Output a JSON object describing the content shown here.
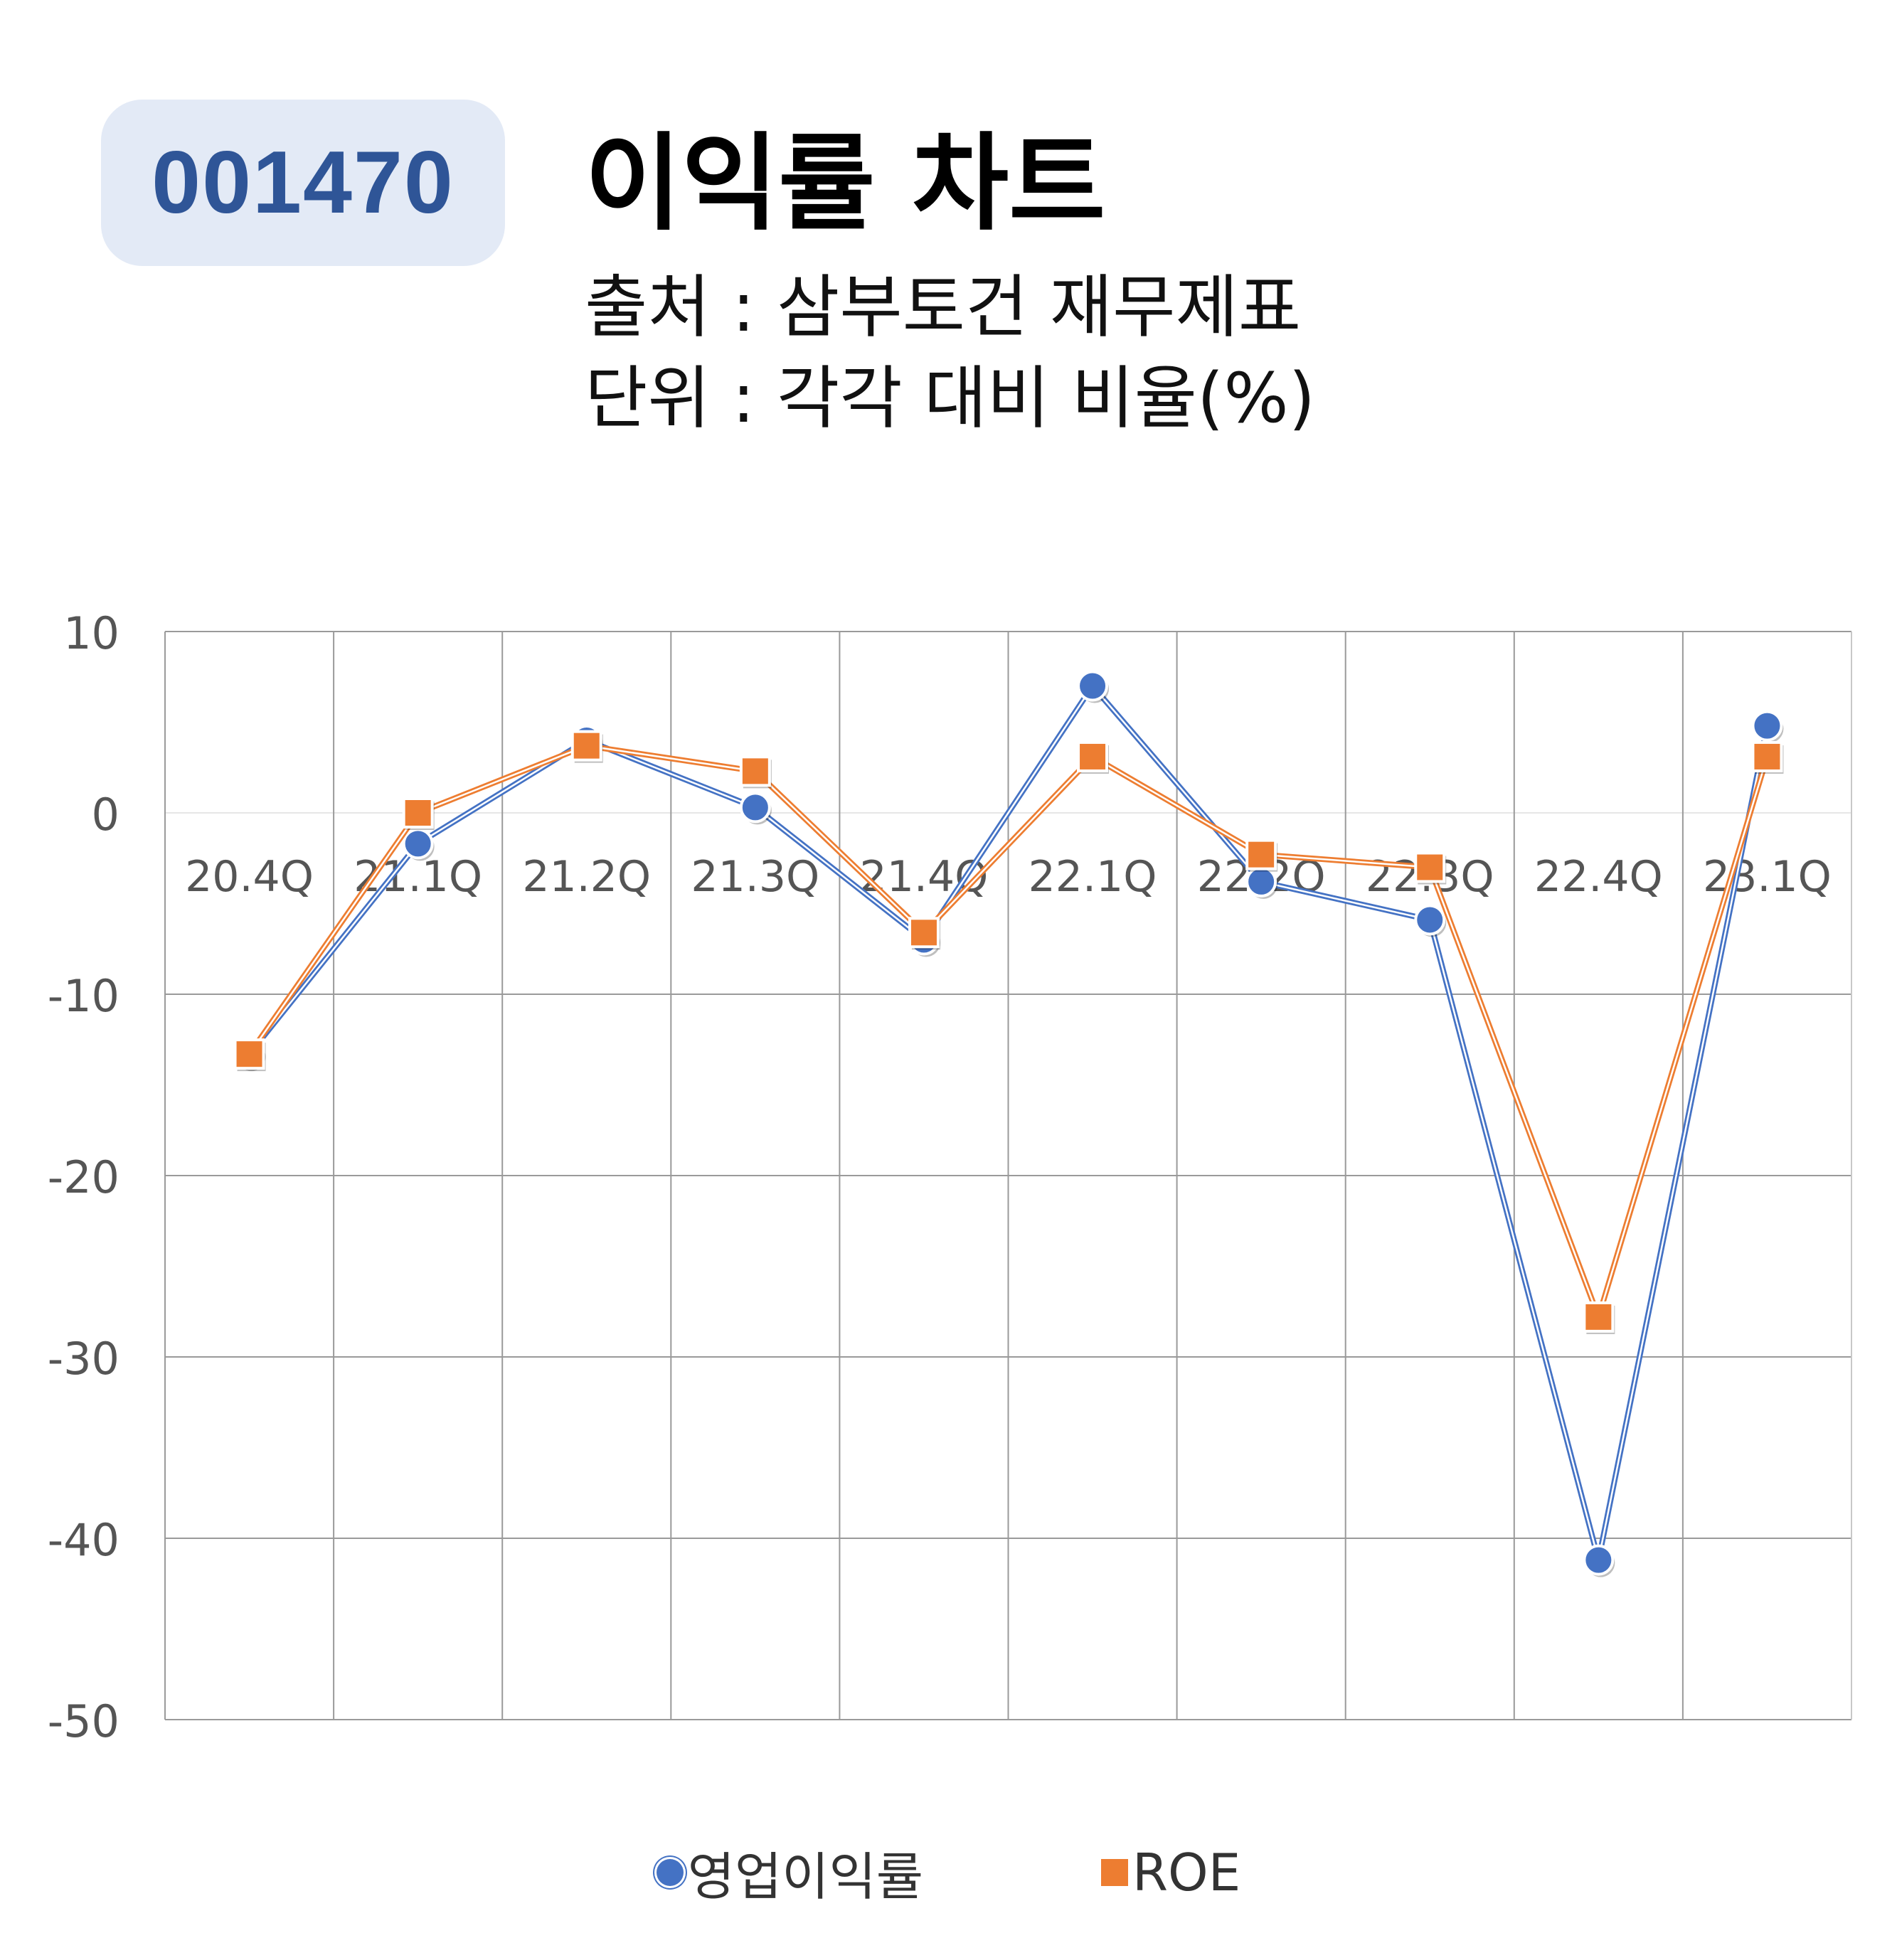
{
  "header": {
    "code": "001470",
    "title": "이익률 차트",
    "source": "출처 : 삼부토건 재무제표",
    "unit": "단위 : 각각 대비 비율(%)"
  },
  "colors": {
    "operating_margin": "#4472c4",
    "roe": "#ed7d31",
    "badge_bg": "#e3eaf6",
    "badge_text": "#2f5597"
  },
  "chart_data": {
    "type": "line",
    "title": "",
    "xlabel": "",
    "ylabel": "",
    "categories": [
      "20.4Q",
      "21.1Q",
      "21.2Q",
      "21.3Q",
      "21.4Q",
      "22.1Q",
      "22.2Q",
      "22.3Q",
      "22.4Q",
      "23.1Q"
    ],
    "ylim": [
      -50,
      10
    ],
    "yticks": [
      10,
      0,
      -10,
      -20,
      -30,
      -40,
      -50
    ],
    "grid": true,
    "legend": "bottom",
    "series": [
      {
        "name": "영업이익률",
        "marker": "circle",
        "values": [
          -13.3,
          -1.7,
          4.0,
          0.3,
          -7.0,
          7.0,
          -3.8,
          -5.9,
          -41.2,
          4.8
        ]
      },
      {
        "name": "ROE",
        "marker": "square",
        "values": [
          -13.3,
          0.0,
          3.7,
          2.3,
          -6.6,
          3.1,
          -2.3,
          -3.0,
          -27.8,
          3.1
        ]
      }
    ]
  }
}
